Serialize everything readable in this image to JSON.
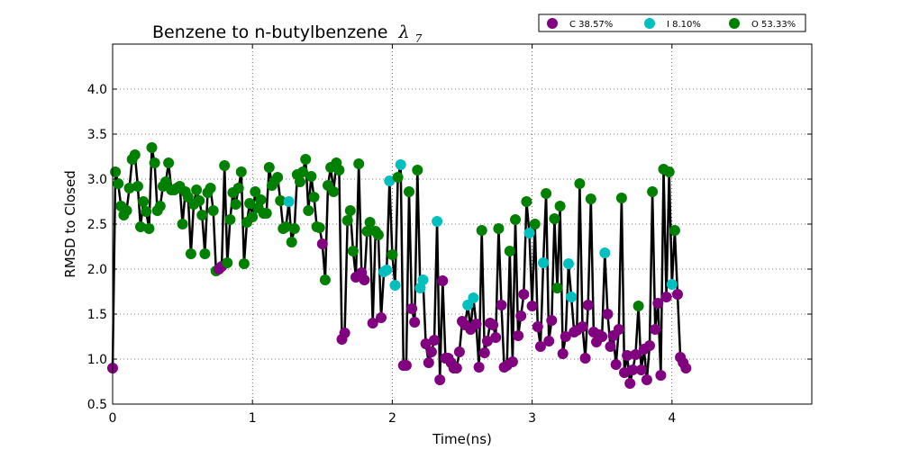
{
  "chart_data": {
    "type": "scatter",
    "title": "Benzene to n-butylbenzene",
    "title_symbol": "λ",
    "title_subscript": "7",
    "xlabel": "Time(ns)",
    "ylabel": "RMSD to Closed",
    "xlim": [
      0,
      5.0
    ],
    "ylim": [
      0.5,
      4.5
    ],
    "xticks": [
      0,
      1,
      2,
      3,
      4
    ],
    "xtick_labels": [
      "0",
      "1",
      "2",
      "3",
      "4"
    ],
    "yticks": [
      0.5,
      1.0,
      1.5,
      2.0,
      2.5,
      3.0,
      3.5,
      4.0
    ],
    "ytick_labels": [
      "0.5",
      "1.0",
      "1.5",
      "2.0",
      "2.5",
      "3.0",
      "3.5",
      "4.0"
    ],
    "grid": true,
    "legend_position": "top-right",
    "line_color": "#000000",
    "series": [
      {
        "label": "C 38.57%",
        "color": "#800080"
      },
      {
        "label": "I 8.10%",
        "color": "#00bfbf"
      },
      {
        "label": "O 53.33%",
        "color": "#008000"
      }
    ],
    "points": [
      [
        0.0,
        0.9,
        "C"
      ],
      [
        0.02,
        3.08,
        "O"
      ],
      [
        0.04,
        2.95,
        "O"
      ],
      [
        0.06,
        2.7,
        "O"
      ],
      [
        0.08,
        2.6,
        "O"
      ],
      [
        0.1,
        2.65,
        "O"
      ],
      [
        0.12,
        2.9,
        "O"
      ],
      [
        0.14,
        3.22,
        "O"
      ],
      [
        0.16,
        3.27,
        "O"
      ],
      [
        0.18,
        2.92,
        "O"
      ],
      [
        0.2,
        2.47,
        "O"
      ],
      [
        0.22,
        2.75,
        "O"
      ],
      [
        0.24,
        2.64,
        "O"
      ],
      [
        0.26,
        2.45,
        "O"
      ],
      [
        0.28,
        3.35,
        "O"
      ],
      [
        0.3,
        3.18,
        "O"
      ],
      [
        0.32,
        2.65,
        "O"
      ],
      [
        0.34,
        2.7,
        "O"
      ],
      [
        0.36,
        2.92,
        "O"
      ],
      [
        0.38,
        2.97,
        "O"
      ],
      [
        0.4,
        3.18,
        "O"
      ],
      [
        0.42,
        2.88,
        "O"
      ],
      [
        0.44,
        2.88,
        "O"
      ],
      [
        0.46,
        2.9,
        "O"
      ],
      [
        0.48,
        2.92,
        "O"
      ],
      [
        0.5,
        2.5,
        "O"
      ],
      [
        0.52,
        2.86,
        "O"
      ],
      [
        0.54,
        2.8,
        "O"
      ],
      [
        0.56,
        2.17,
        "O"
      ],
      [
        0.58,
        2.72,
        "O"
      ],
      [
        0.6,
        2.88,
        "O"
      ],
      [
        0.62,
        2.76,
        "O"
      ],
      [
        0.64,
        2.6,
        "O"
      ],
      [
        0.66,
        2.17,
        "O"
      ],
      [
        0.68,
        2.85,
        "O"
      ],
      [
        0.7,
        2.9,
        "O"
      ],
      [
        0.72,
        2.65,
        "O"
      ],
      [
        0.74,
        1.98,
        "O"
      ],
      [
        0.76,
        2.0,
        "C"
      ],
      [
        0.78,
        2.03,
        "C"
      ],
      [
        0.8,
        3.15,
        "O"
      ],
      [
        0.82,
        2.07,
        "O"
      ],
      [
        0.84,
        2.55,
        "O"
      ],
      [
        0.86,
        2.85,
        "O"
      ],
      [
        0.88,
        2.72,
        "O"
      ],
      [
        0.9,
        2.9,
        "O"
      ],
      [
        0.92,
        3.08,
        "O"
      ],
      [
        0.94,
        2.06,
        "O"
      ],
      [
        0.96,
        2.52,
        "O"
      ],
      [
        0.98,
        2.73,
        "O"
      ],
      [
        1.0,
        2.58,
        "O"
      ],
      [
        1.02,
        2.86,
        "O"
      ],
      [
        1.04,
        2.68,
        "O"
      ],
      [
        1.06,
        2.77,
        "O"
      ],
      [
        1.08,
        2.62,
        "O"
      ],
      [
        1.1,
        2.62,
        "O"
      ],
      [
        1.12,
        3.13,
        "O"
      ],
      [
        1.14,
        2.93,
        "O"
      ],
      [
        1.16,
        2.98,
        "O"
      ],
      [
        1.18,
        3.02,
        "O"
      ],
      [
        1.2,
        2.76,
        "O"
      ],
      [
        1.22,
        2.45,
        "O"
      ],
      [
        1.24,
        2.47,
        "O"
      ],
      [
        1.26,
        2.75,
        "I"
      ],
      [
        1.28,
        2.3,
        "O"
      ],
      [
        1.3,
        2.45,
        "O"
      ],
      [
        1.32,
        3.05,
        "O"
      ],
      [
        1.34,
        2.97,
        "O"
      ],
      [
        1.36,
        3.08,
        "O"
      ],
      [
        1.38,
        3.22,
        "O"
      ],
      [
        1.4,
        2.65,
        "O"
      ],
      [
        1.42,
        3.03,
        "O"
      ],
      [
        1.44,
        2.8,
        "O"
      ],
      [
        1.46,
        2.47,
        "O"
      ],
      [
        1.48,
        2.46,
        "O"
      ],
      [
        1.5,
        2.28,
        "C"
      ],
      [
        1.52,
        1.88,
        "O"
      ],
      [
        1.54,
        2.93,
        "O"
      ],
      [
        1.56,
        3.13,
        "O"
      ],
      [
        1.58,
        2.86,
        "O"
      ],
      [
        1.6,
        3.18,
        "O"
      ],
      [
        1.62,
        3.1,
        "O"
      ],
      [
        1.64,
        1.22,
        "C"
      ],
      [
        1.66,
        1.29,
        "C"
      ],
      [
        1.68,
        2.54,
        "O"
      ],
      [
        1.7,
        2.65,
        "O"
      ],
      [
        1.72,
        2.2,
        "O"
      ],
      [
        1.74,
        1.91,
        "C"
      ],
      [
        1.76,
        3.17,
        "O"
      ],
      [
        1.78,
        1.96,
        "C"
      ],
      [
        1.8,
        1.88,
        "C"
      ],
      [
        1.82,
        2.42,
        "O"
      ],
      [
        1.84,
        2.52,
        "O"
      ],
      [
        1.86,
        1.4,
        "C"
      ],
      [
        1.88,
        2.42,
        "O"
      ],
      [
        1.9,
        2.38,
        "O"
      ],
      [
        1.92,
        1.46,
        "C"
      ],
      [
        1.94,
        1.97,
        "I"
      ],
      [
        1.96,
        1.99,
        "I"
      ],
      [
        1.98,
        2.98,
        "I"
      ],
      [
        2.0,
        2.16,
        "O"
      ],
      [
        2.02,
        1.82,
        "I"
      ],
      [
        2.04,
        3.02,
        "O"
      ],
      [
        2.06,
        3.16,
        "I"
      ],
      [
        2.08,
        0.93,
        "C"
      ],
      [
        2.1,
        0.93,
        "C"
      ],
      [
        2.12,
        2.86,
        "O"
      ],
      [
        2.14,
        1.56,
        "C"
      ],
      [
        2.16,
        1.41,
        "C"
      ],
      [
        2.18,
        3.1,
        "O"
      ],
      [
        2.2,
        1.79,
        "I"
      ],
      [
        2.22,
        1.88,
        "I"
      ],
      [
        2.24,
        1.17,
        "C"
      ],
      [
        2.26,
        0.96,
        "C"
      ],
      [
        2.28,
        1.08,
        "C"
      ],
      [
        2.3,
        1.21,
        "C"
      ],
      [
        2.32,
        2.53,
        "I"
      ],
      [
        2.34,
        0.77,
        "C"
      ],
      [
        2.36,
        1.87,
        "C"
      ],
      [
        2.38,
        1.01,
        "C"
      ],
      [
        2.4,
        1.01,
        "C"
      ],
      [
        2.42,
        0.96,
        "C"
      ],
      [
        2.44,
        0.9,
        "C"
      ],
      [
        2.46,
        0.9,
        "C"
      ],
      [
        2.48,
        1.08,
        "C"
      ],
      [
        2.5,
        1.42,
        "C"
      ],
      [
        2.52,
        1.38,
        "C"
      ],
      [
        2.54,
        1.6,
        "I"
      ],
      [
        2.56,
        1.33,
        "C"
      ],
      [
        2.58,
        1.68,
        "I"
      ],
      [
        2.6,
        1.39,
        "C"
      ],
      [
        2.62,
        0.91,
        "C"
      ],
      [
        2.64,
        2.43,
        "O"
      ],
      [
        2.66,
        1.07,
        "C"
      ],
      [
        2.68,
        1.2,
        "C"
      ],
      [
        2.7,
        1.4,
        "C"
      ],
      [
        2.72,
        1.38,
        "C"
      ],
      [
        2.74,
        1.24,
        "C"
      ],
      [
        2.76,
        2.45,
        "O"
      ],
      [
        2.78,
        1.6,
        "C"
      ],
      [
        2.8,
        0.91,
        "C"
      ],
      [
        2.82,
        0.93,
        "C"
      ],
      [
        2.84,
        2.2,
        "O"
      ],
      [
        2.86,
        0.97,
        "C"
      ],
      [
        2.88,
        2.55,
        "O"
      ],
      [
        2.9,
        1.26,
        "C"
      ],
      [
        2.92,
        1.48,
        "C"
      ],
      [
        2.94,
        1.72,
        "C"
      ],
      [
        2.96,
        2.75,
        "O"
      ],
      [
        2.98,
        2.4,
        "I"
      ],
      [
        3.0,
        1.59,
        "C"
      ],
      [
        3.02,
        2.5,
        "O"
      ],
      [
        3.04,
        1.36,
        "C"
      ],
      [
        3.06,
        1.14,
        "C"
      ],
      [
        3.08,
        2.07,
        "I"
      ],
      [
        3.1,
        2.84,
        "O"
      ],
      [
        3.12,
        1.2,
        "C"
      ],
      [
        3.14,
        1.43,
        "C"
      ],
      [
        3.16,
        2.56,
        "O"
      ],
      [
        3.18,
        1.79,
        "O"
      ],
      [
        3.2,
        2.7,
        "O"
      ],
      [
        3.22,
        1.06,
        "C"
      ],
      [
        3.24,
        1.25,
        "C"
      ],
      [
        3.26,
        2.06,
        "I"
      ],
      [
        3.28,
        1.69,
        "I"
      ],
      [
        3.3,
        1.3,
        "C"
      ],
      [
        3.32,
        1.32,
        "C"
      ],
      [
        3.34,
        2.95,
        "O"
      ],
      [
        3.36,
        1.36,
        "C"
      ],
      [
        3.38,
        1.01,
        "C"
      ],
      [
        3.4,
        1.6,
        "C"
      ],
      [
        3.42,
        2.78,
        "O"
      ],
      [
        3.44,
        1.3,
        "C"
      ],
      [
        3.46,
        1.19,
        "C"
      ],
      [
        3.48,
        1.27,
        "C"
      ],
      [
        3.5,
        1.25,
        "C"
      ],
      [
        3.52,
        2.18,
        "I"
      ],
      [
        3.54,
        1.5,
        "C"
      ],
      [
        3.56,
        1.14,
        "C"
      ],
      [
        3.58,
        1.26,
        "C"
      ],
      [
        3.6,
        0.94,
        "C"
      ],
      [
        3.62,
        1.33,
        "C"
      ],
      [
        3.64,
        2.79,
        "O"
      ],
      [
        3.66,
        0.85,
        "C"
      ],
      [
        3.68,
        1.04,
        "C"
      ],
      [
        3.7,
        0.73,
        "C"
      ],
      [
        3.72,
        0.88,
        "C"
      ],
      [
        3.74,
        1.05,
        "C"
      ],
      [
        3.76,
        1.59,
        "O"
      ],
      [
        3.78,
        0.88,
        "C"
      ],
      [
        3.8,
        1.11,
        "C"
      ],
      [
        3.82,
        0.77,
        "C"
      ],
      [
        3.84,
        1.15,
        "C"
      ],
      [
        3.86,
        2.86,
        "O"
      ],
      [
        3.88,
        1.33,
        "C"
      ],
      [
        3.9,
        1.62,
        "C"
      ],
      [
        3.92,
        0.82,
        "C"
      ],
      [
        3.94,
        3.11,
        "O"
      ],
      [
        3.96,
        1.69,
        "C"
      ],
      [
        3.98,
        3.08,
        "O"
      ],
      [
        4.0,
        1.83,
        "I"
      ],
      [
        4.02,
        2.43,
        "O"
      ],
      [
        4.04,
        1.72,
        "C"
      ],
      [
        4.06,
        1.02,
        "C"
      ],
      [
        4.08,
        0.96,
        "C"
      ],
      [
        4.1,
        0.9,
        "C"
      ]
    ]
  }
}
